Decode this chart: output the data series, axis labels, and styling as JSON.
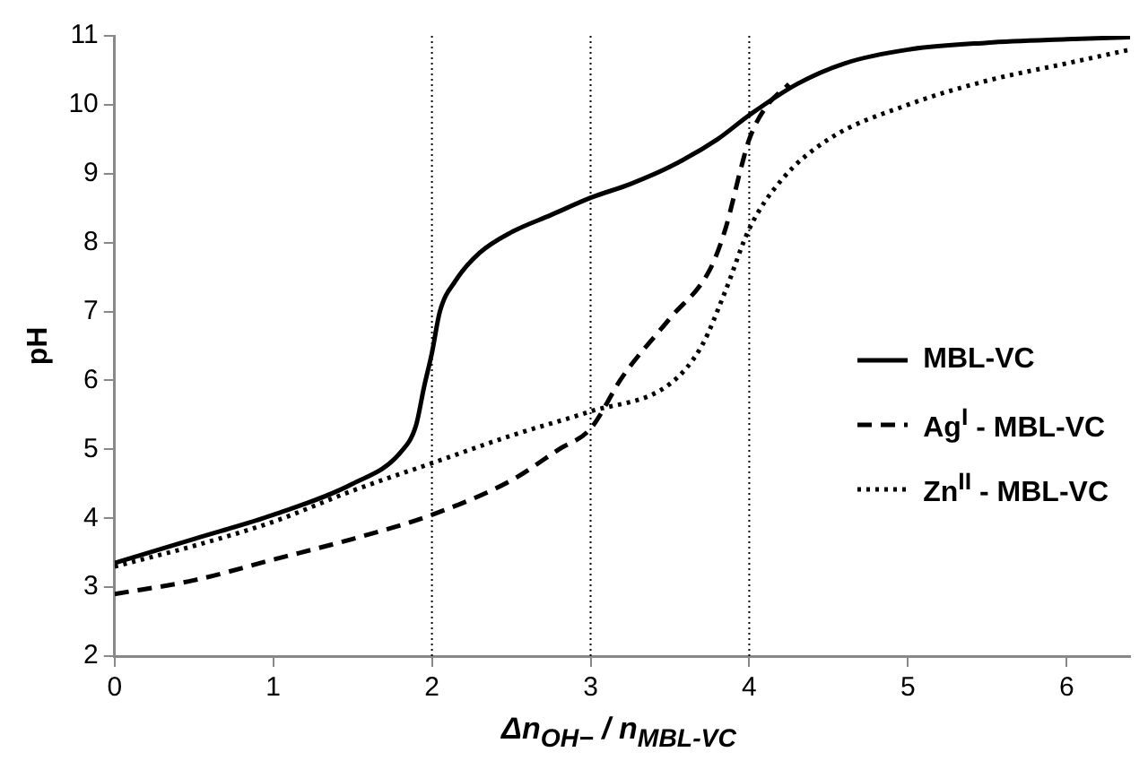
{
  "chart_data": {
    "type": "line",
    "xlabel": "Δn$_{OH−}$ / n$_{MBL-VC}$",
    "ylabel": "pH",
    "xlim": [
      0,
      6.4
    ],
    "xticks": [
      0,
      1,
      2,
      3,
      4,
      5,
      6
    ],
    "ylim": [
      2,
      11
    ],
    "yticks": [
      2,
      3,
      4,
      5,
      6,
      7,
      8,
      9,
      10,
      11
    ],
    "grid": false,
    "legend": "right",
    "marker": "none",
    "ref_lines": [
      {
        "axis": "x",
        "value": 2,
        "color": "#000000",
        "line_style": "dotted"
      },
      {
        "axis": "x",
        "value": 3,
        "color": "#000000",
        "line_style": "dotted"
      },
      {
        "axis": "x",
        "value": 4,
        "color": "#000000",
        "line_style": "dotted"
      }
    ],
    "series": [
      {
        "name": "MBL-VC",
        "color": "#000000",
        "line_style": "solid",
        "x": [
          0,
          0.5,
          1,
          1.5,
          1.8,
          1.9,
          1.95,
          2,
          2.05,
          2.15,
          2.3,
          2.5,
          2.75,
          3,
          3.25,
          3.5,
          3.8,
          4,
          4.3,
          4.6,
          5,
          5.5,
          6,
          6.4
        ],
        "values": [
          3.35,
          3.7,
          4.05,
          4.5,
          4.95,
          5.35,
          5.9,
          6.4,
          7,
          7.45,
          7.85,
          8.15,
          8.4,
          8.65,
          8.85,
          9.1,
          9.5,
          9.85,
          10.3,
          10.6,
          10.8,
          10.9,
          10.95,
          10.98
        ]
      },
      {
        "name": "Ag$^{I}$ - MBL-VC",
        "color": "#000000",
        "line_style": "dashed",
        "x": [
          0,
          0.5,
          1,
          1.5,
          2,
          2.5,
          2.8,
          3,
          3.2,
          3.5,
          3.75,
          3.85,
          3.95,
          4,
          4.1,
          4.25
        ],
        "values": [
          2.9,
          3.1,
          3.4,
          3.7,
          4.05,
          4.55,
          5,
          5.3,
          6.05,
          6.9,
          7.6,
          8.2,
          9.1,
          9.5,
          9.95,
          10.3
        ]
      },
      {
        "name": "Zn$^{II}$ - MBL-VC",
        "color": "#000000",
        "line_style": "dotted",
        "x": [
          0,
          0.5,
          1,
          1.5,
          2,
          2.5,
          3,
          3.5,
          3.7,
          3.85,
          4,
          4.2,
          4.5,
          5,
          5.5,
          6,
          6.4
        ],
        "values": [
          3.3,
          3.6,
          3.95,
          4.4,
          4.8,
          5.2,
          5.55,
          5.95,
          6.5,
          7.3,
          8.2,
          8.9,
          9.5,
          10.0,
          10.35,
          10.6,
          10.8
        ]
      }
    ]
  }
}
